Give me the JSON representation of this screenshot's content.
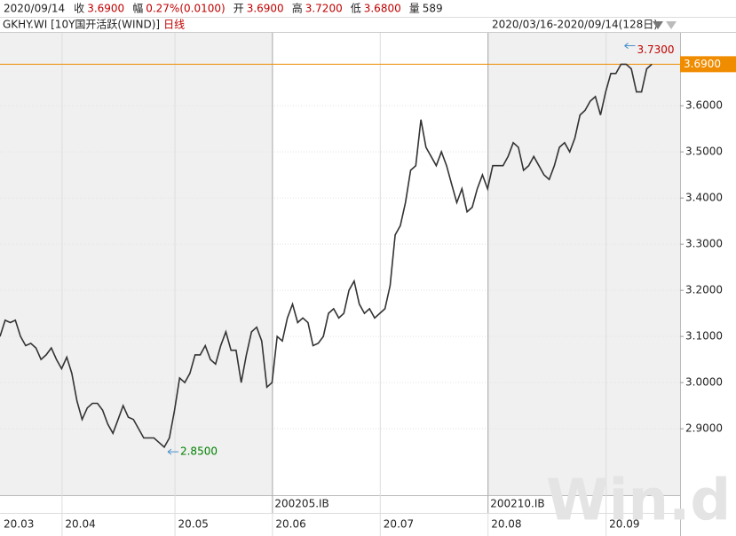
{
  "header": {
    "date": "2020/09/14",
    "quote": [
      {
        "label": "收",
        "value": "3.6900"
      },
      {
        "label": "幅",
        "value": "0.27%(0.0100)"
      },
      {
        "label": "开",
        "value": "3.6900"
      },
      {
        "label": "高",
        "value": "3.7200"
      },
      {
        "label": "低",
        "value": "3.6800"
      },
      {
        "label": "量",
        "value": "589"
      }
    ],
    "symbol": "GKHY.WI [10Y国开活跃(WIND)]",
    "period": "日线",
    "range": "2020/03/16-2020/09/14(128日)"
  },
  "chart_data": {
    "type": "line",
    "color": "#333333",
    "x": [
      0,
      1,
      2,
      3,
      4,
      5,
      6,
      7,
      8,
      9,
      10,
      11,
      12,
      13,
      14,
      15,
      16,
      17,
      18,
      19,
      20,
      21,
      22,
      23,
      24,
      25,
      26,
      27,
      28,
      29,
      30,
      31,
      32,
      33,
      34,
      35,
      36,
      37,
      38,
      39,
      40,
      41,
      42,
      43,
      44,
      45,
      46,
      47,
      48,
      49,
      50,
      51,
      52,
      53,
      54,
      55,
      56,
      57,
      58,
      59,
      60,
      61,
      62,
      63,
      64,
      65,
      66,
      67,
      68,
      69,
      70,
      71,
      72,
      73,
      74,
      75,
      76,
      77,
      78,
      79,
      80,
      81,
      82,
      83,
      84,
      85,
      86,
      87,
      88,
      89,
      90,
      91,
      92,
      93,
      94,
      95,
      96,
      97,
      98,
      99,
      100,
      101,
      102,
      103,
      104,
      105,
      106,
      107,
      108,
      109,
      110,
      111,
      112,
      113,
      114,
      115,
      116,
      117,
      118,
      119,
      120,
      121,
      122,
      123,
      124,
      125,
      126,
      127
    ],
    "values": [
      3.1,
      3.135,
      3.13,
      3.135,
      3.1,
      3.08,
      3.085,
      3.075,
      3.05,
      3.06,
      3.075,
      3.05,
      3.03,
      3.055,
      3.02,
      2.96,
      2.92,
      2.945,
      2.955,
      2.955,
      2.94,
      2.91,
      2.89,
      2.92,
      2.95,
      2.925,
      2.92,
      2.9,
      2.88,
      2.88,
      2.88,
      2.87,
      2.86,
      2.88,
      2.94,
      3.01,
      3.0,
      3.02,
      3.06,
      3.06,
      3.08,
      3.05,
      3.04,
      3.08,
      3.11,
      3.07,
      3.07,
      3.0,
      3.06,
      3.11,
      3.12,
      3.09,
      2.99,
      3.0,
      3.1,
      3.09,
      3.14,
      3.17,
      3.13,
      3.14,
      3.13,
      3.08,
      3.085,
      3.1,
      3.15,
      3.16,
      3.14,
      3.15,
      3.2,
      3.22,
      3.17,
      3.15,
      3.16,
      3.14,
      3.15,
      3.16,
      3.21,
      3.32,
      3.34,
      3.39,
      3.46,
      3.47,
      3.57,
      3.51,
      3.49,
      3.47,
      3.5,
      3.47,
      3.43,
      3.39,
      3.42,
      3.37,
      3.38,
      3.42,
      3.45,
      3.42,
      3.47,
      3.47,
      3.47,
      3.49,
      3.52,
      3.51,
      3.46,
      3.47,
      3.49,
      3.47,
      3.45,
      3.44,
      3.47,
      3.51,
      3.52,
      3.5,
      3.53,
      3.58,
      3.59,
      3.61,
      3.62,
      3.58,
      3.63,
      3.67,
      3.67,
      3.69,
      3.69,
      3.68,
      3.63,
      3.63,
      3.68,
      3.69
    ],
    "xlim": [
      0,
      132.5
    ],
    "ylim": [
      2.756,
      3.758
    ],
    "yticks": [
      {
        "value": 2.9,
        "label": "2.9000"
      },
      {
        "value": 3.0,
        "label": "3.0000"
      },
      {
        "value": 3.1,
        "label": "3.1000"
      },
      {
        "value": 3.2,
        "label": "3.2000"
      },
      {
        "value": 3.3,
        "label": "3.3000"
      },
      {
        "value": 3.4,
        "label": "3.4000"
      },
      {
        "value": 3.5,
        "label": "3.5000"
      },
      {
        "value": 3.6,
        "label": "3.6000"
      }
    ],
    "xticks": [
      {
        "value": 0,
        "label": "20.03"
      },
      {
        "value": 12,
        "label": "20.04"
      },
      {
        "value": 34,
        "label": "20.05"
      },
      {
        "value": 53,
        "label": "20.06"
      },
      {
        "value": 74,
        "label": "20.07"
      },
      {
        "value": 95,
        "label": "20.08"
      },
      {
        "value": 118,
        "label": "20.09"
      }
    ],
    "rolls": [
      {
        "x": 53,
        "label": "200205.IB"
      },
      {
        "x": 95,
        "label": "200210.IB"
      }
    ],
    "last_price": {
      "value": 3.69,
      "label": "3.6900",
      "color": "#f08c00"
    },
    "high": {
      "value": 3.73,
      "label": "3.7300",
      "color": "#c00000"
    },
    "low": {
      "value": 2.85,
      "label": "2.8500",
      "color": "#008000"
    },
    "watermark": "Win.d"
  }
}
